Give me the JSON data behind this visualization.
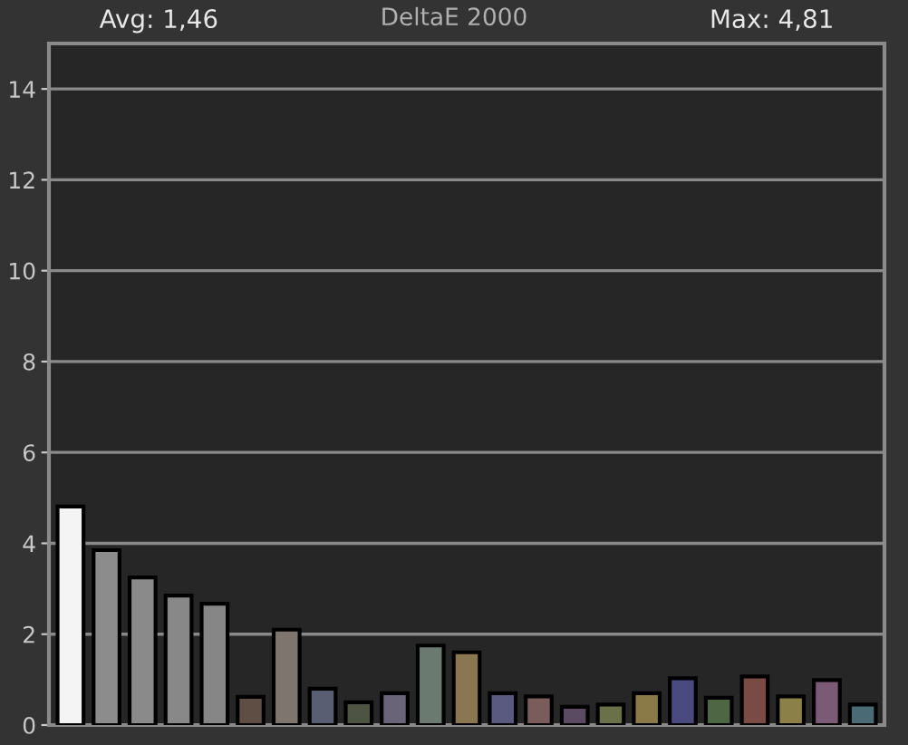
{
  "chart_data": {
    "type": "bar",
    "title": "DeltaE 2000",
    "annotations": [
      "Avg: 1,46",
      "Max: 4,81"
    ],
    "categories": [
      null,
      null,
      null,
      null,
      null,
      null,
      null,
      null,
      null,
      null,
      null,
      null,
      null,
      null,
      null,
      null,
      null,
      null,
      null,
      null,
      null,
      null,
      null
    ],
    "values": [
      4.81,
      3.85,
      3.25,
      2.85,
      2.67,
      0.62,
      2.1,
      0.8,
      0.5,
      0.7,
      1.75,
      1.6,
      0.7,
      0.63,
      0.4,
      0.45,
      0.7,
      1.03,
      0.6,
      1.07,
      0.63,
      0.99,
      0.45
    ],
    "colors": [
      "#f4f4f4",
      "#8c8c8c",
      "#8a8a8a",
      "#888888",
      "#868686",
      "#5e4e44",
      "#7e766e",
      "#5a5e72",
      "#4e5442",
      "#6a6478",
      "#6a7a70",
      "#8a7650",
      "#5a5a80",
      "#7a5c5c",
      "#5a4a62",
      "#6a7048",
      "#8a7a48",
      "#4a4a80",
      "#4e6644",
      "#7a4a44",
      "#8a8048",
      "#7a5a74",
      "#4a6a74"
    ],
    "ylim": [
      0,
      15
    ],
    "yticks": [
      0,
      2,
      4,
      6,
      8,
      10,
      12,
      14
    ],
    "grid": "y",
    "tick_labels": "y"
  }
}
